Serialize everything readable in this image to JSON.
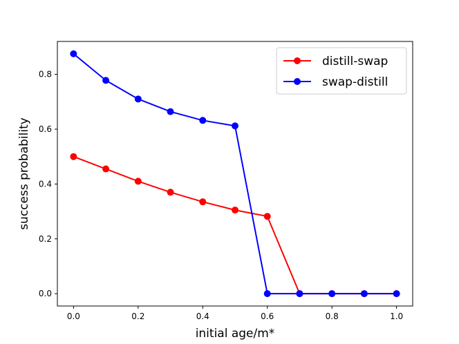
{
  "chart_data": {
    "type": "line",
    "title": "",
    "xlabel": "initial age/m*",
    "ylabel": "success probability",
    "xlim": [
      -0.05,
      1.05
    ],
    "ylim": [
      -0.045,
      0.92
    ],
    "xticks": [
      0.0,
      0.2,
      0.4,
      0.6,
      0.8,
      1.0
    ],
    "xtick_labels": [
      "0.0",
      "0.2",
      "0.4",
      "0.6",
      "0.8",
      "1.0"
    ],
    "yticks": [
      0.0,
      0.2,
      0.4,
      0.6,
      0.8
    ],
    "ytick_labels": [
      "0.0",
      "0.2",
      "0.4",
      "0.6",
      "0.8"
    ],
    "grid": false,
    "legend_position": "top-right",
    "x": [
      0.0,
      0.1,
      0.2,
      0.3,
      0.4,
      0.5,
      0.6,
      0.7,
      0.8,
      0.9,
      1.0
    ],
    "series": [
      {
        "name": "distill-swap",
        "color": "#ff0000",
        "marker": "circle",
        "values": [
          0.5,
          0.455,
          0.41,
          0.37,
          0.335,
          0.305,
          0.282,
          0.0,
          0.0,
          0.0,
          0.0
        ]
      },
      {
        "name": "swap-distill",
        "color": "#0000ff",
        "marker": "circle",
        "values": [
          0.875,
          0.778,
          0.71,
          0.664,
          0.632,
          0.612,
          0.0,
          0.0,
          0.0,
          0.0,
          0.0
        ]
      }
    ]
  }
}
